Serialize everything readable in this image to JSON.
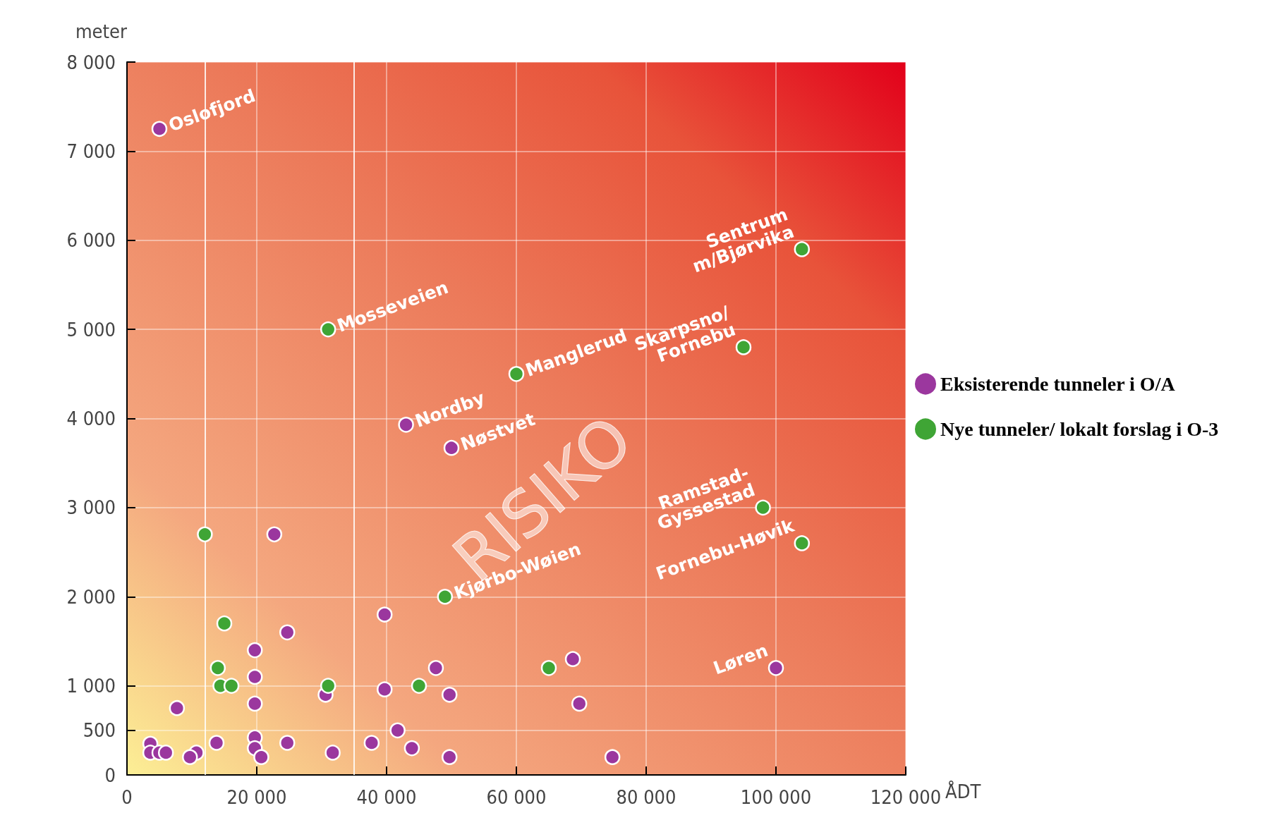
{
  "chart_data": {
    "type": "scatter",
    "xlabel": "ÅDT",
    "ylabel": "meter",
    "xlim": [
      0,
      120000
    ],
    "ylim": [
      0,
      8000
    ],
    "xticks": [
      0,
      {
        "value": 20000,
        "label": "20 000"
      },
      {
        "value": 40000,
        "label": "40 000"
      },
      {
        "value": 60000,
        "label": "60 000"
      },
      {
        "value": 80000,
        "label": "80 000"
      },
      {
        "value": 100000,
        "label": "100 000"
      },
      {
        "value": 120000,
        "label": "120 000"
      }
    ],
    "yticks": [
      0,
      500,
      {
        "value": 1000,
        "label": "1 000"
      },
      {
        "value": 2000,
        "label": "2 000"
      },
      {
        "value": 3000,
        "label": "3 000"
      },
      {
        "value": 4000,
        "label": "4 000"
      },
      {
        "value": 5000,
        "label": "5 000"
      },
      {
        "value": 6000,
        "label": "6 000"
      },
      {
        "value": 7000,
        "label": "7 000"
      },
      {
        "value": 8000,
        "label": "8 000"
      }
    ],
    "grid": true,
    "legend": "right",
    "marker": "circle",
    "ref_lines": [
      {
        "axis": "x",
        "value": 12000,
        "color": "#ffffff"
      },
      {
        "axis": "x",
        "value": 35000,
        "color": "#ffffff"
      }
    ],
    "series": [
      {
        "name": "Eksisterende tunneler i O/A",
        "color": "#9b379e",
        "x": [
          5000,
          43000,
          50000,
          22700,
          39700,
          24700,
          19700,
          19700,
          19700,
          7700,
          30600,
          39700,
          47600,
          49700,
          68700,
          69700,
          41700,
          37700,
          43900,
          49700,
          74800,
          31700,
          24700,
          13800,
          19700,
          19700,
          20700,
          10700,
          9700,
          3600,
          3600,
          5000,
          6000,
          100000
        ],
        "values": [
          7250,
          3930,
          3670,
          2700,
          1800,
          1600,
          1400,
          1100,
          800,
          750,
          900,
          960,
          1200,
          900,
          1300,
          800,
          500,
          360,
          300,
          200,
          200,
          250,
          360,
          360,
          420,
          300,
          200,
          250,
          200,
          350,
          250,
          250,
          250,
          1200
        ]
      },
      {
        "name": "Nye tunneler/ lokalt forslag i O-3",
        "color": "#3fa535",
        "x": [
          31000,
          60000,
          104000,
          95000,
          98000,
          104000,
          49000,
          12000,
          15000,
          14000,
          14400,
          16100,
          31000,
          45000,
          65000
        ],
        "values": [
          5000,
          4500,
          5900,
          4800,
          3000,
          2600,
          2000,
          2700,
          1700,
          1200,
          1000,
          1000,
          1000,
          1000,
          1200
        ]
      }
    ],
    "annotations": [
      {
        "text": "Oslofjord",
        "x": 5000,
        "y": 7250
      },
      {
        "text": "Mosseveien",
        "x": 31000,
        "y": 5000
      },
      {
        "text": "Manglerud",
        "x": 60000,
        "y": 4500
      },
      {
        "text": "Nordby",
        "x": 43000,
        "y": 3930
      },
      {
        "text": "Nøstvet",
        "x": 50000,
        "y": 3670
      },
      {
        "text": "Kjørbo-Wøien",
        "x": 49000,
        "y": 2000
      },
      {
        "text": "Sentrum\nm/Bjørvika",
        "x": 104000,
        "y": 5900
      },
      {
        "text": "Skarpsno/\nFornebu",
        "x": 95000,
        "y": 4800
      },
      {
        "text": "Ramstad-\nGyssestad",
        "x": 98000,
        "y": 3000
      },
      {
        "text": "Fornebu-Høvik",
        "x": 104000,
        "y": 2600
      },
      {
        "text": "Løren",
        "x": 100000,
        "y": 1200
      },
      "RISIKO"
    ]
  }
}
